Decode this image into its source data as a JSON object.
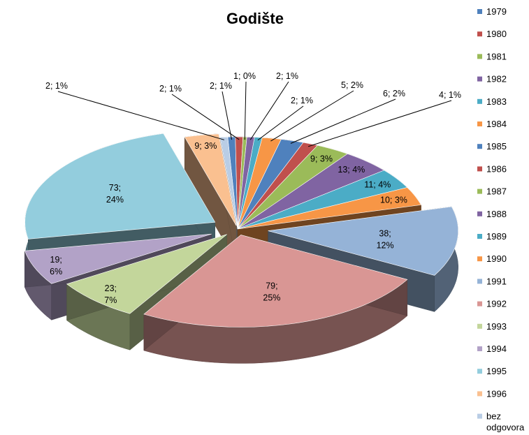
{
  "chart_data": {
    "type": "pie",
    "title": "Godište",
    "slices": [
      {
        "category": "1979",
        "value": 2,
        "percent": "1%",
        "color": "#4F81BD"
      },
      {
        "category": "1980",
        "value": 2,
        "percent": "1%",
        "color": "#C0504D"
      },
      {
        "category": "1981",
        "value": 1,
        "percent": "0%",
        "color": "#9BBB59"
      },
      {
        "category": "1982",
        "value": 2,
        "percent": "1%",
        "color": "#8064A2"
      },
      {
        "category": "1983",
        "value": 2,
        "percent": "1%",
        "color": "#4BACC6"
      },
      {
        "category": "1984",
        "value": 5,
        "percent": "2%",
        "color": "#F79646"
      },
      {
        "category": "1985",
        "value": 6,
        "percent": "2%",
        "color": "#4F81BD"
      },
      {
        "category": "1986",
        "value": 4,
        "percent": "1%",
        "color": "#C0504D"
      },
      {
        "category": "1987",
        "value": 9,
        "percent": "3%",
        "color": "#9BBB59"
      },
      {
        "category": "1988",
        "value": 13,
        "percent": "4%",
        "color": "#8064A2"
      },
      {
        "category": "1989",
        "value": 11,
        "percent": "4%",
        "color": "#4BACC6"
      },
      {
        "category": "1990",
        "value": 10,
        "percent": "3%",
        "color": "#F79646"
      },
      {
        "category": "1991",
        "value": 38,
        "percent": "12%",
        "color": "#95B3D7"
      },
      {
        "category": "1992",
        "value": 79,
        "percent": "25%",
        "color": "#D99694"
      },
      {
        "category": "1993",
        "value": 23,
        "percent": "7%",
        "color": "#C3D69B"
      },
      {
        "category": "1994",
        "value": 19,
        "percent": "6%",
        "color": "#B2A2C7"
      },
      {
        "category": "1995",
        "value": 73,
        "percent": "24%",
        "color": "#93CDDD"
      },
      {
        "category": "1996",
        "value": 9,
        "percent": "3%",
        "color": "#FAC090"
      },
      {
        "category": "bez odgovora",
        "value": 2,
        "percent": "1%",
        "color": "#B9CDE5"
      }
    ],
    "legend": [
      "1979",
      "1980",
      "1981",
      "1982",
      "1983",
      "1984",
      "1985",
      "1986",
      "1987",
      "1988",
      "1989",
      "1990",
      "1991",
      "1992",
      "1993",
      "1994",
      "1995",
      "1996",
      "bez odgovora"
    ],
    "legend_position": "right",
    "label_format": "value; percent"
  }
}
